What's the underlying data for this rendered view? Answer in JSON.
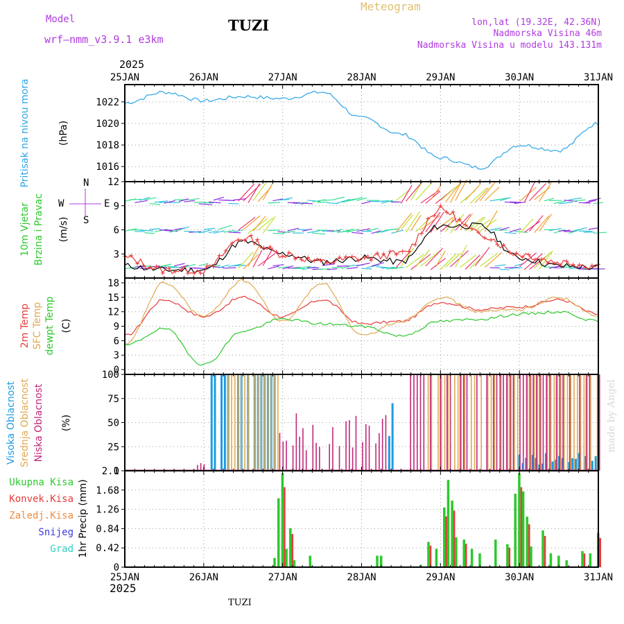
{
  "header": {
    "model_label": "Model",
    "model_name": "wrf–nmm_v3.9.1  e3km",
    "station": "TUZI",
    "title": "Meteogram",
    "coords": "lon,lat (19.32E, 42.36N)",
    "elevation": "Nadmorska Visina 46m",
    "model_elevation": "Nadmorska Visina u modelu 143.131m",
    "year_top": "2025",
    "year_bottom": "2025",
    "footer_station": "TUZI",
    "credit": "made by Angel"
  },
  "colors": {
    "pressure": "#2aa5e6",
    "temp2m": "#e83a3a",
    "sfc": "#e0a850",
    "dew": "#2dc82d",
    "wind_speed": "#000000",
    "gust": "#e83a3a",
    "high_cloud": "#1e9be0",
    "mid_cloud": "#e0a850",
    "low_cloud": "#c0267a",
    "precip_total": "#2dc82d",
    "precip_conv": "#e83a3a"
  },
  "chart_data": [
    {
      "type": "line",
      "panel": "pressure",
      "ylabel_left": "Pritisak na nivou mora",
      "ylabel_unit": "(hPa)",
      "ylim": [
        1014.6,
        1023.6
      ],
      "yticks": [
        "1016",
        "1018",
        "1020",
        "1022"
      ],
      "xlabels": [
        "25JAN",
        "26JAN",
        "27JAN",
        "28JAN",
        "29JAN",
        "30JAN",
        "31JAN"
      ],
      "x": [
        0,
        0.5,
        1,
        1.5,
        2,
        2.5,
        3,
        3.5,
        4,
        4.5,
        5,
        5.5,
        6
      ],
      "values": [
        1021.9,
        1022.9,
        1022.1,
        1022.5,
        1022.3,
        1022.9,
        1020.5,
        1019.0,
        1016.8,
        1015.9,
        1018.0,
        1017.5,
        1020.0
      ]
    },
    {
      "type": "line",
      "panel": "wind",
      "ylabel_left": [
        "10m Vjetar",
        "Brzina i Pravac"
      ],
      "ylabel_unit": "(m/s)",
      "ylim": [
        0,
        12
      ],
      "yticks": [
        "3",
        "6",
        "9",
        "12"
      ],
      "direction_legend": [
        "W",
        "E",
        "N",
        "S"
      ],
      "series": [
        {
          "name": "speed",
          "x": [
            0,
            0.5,
            1,
            1.5,
            2,
            2.5,
            3,
            3.5,
            4,
            4.5,
            5,
            5.5,
            6
          ],
          "values": [
            1.5,
            1.0,
            1.0,
            4.5,
            3.0,
            2.0,
            2.5,
            2.0,
            6.5,
            6.5,
            2.5,
            1.5,
            1.3
          ]
        },
        {
          "name": "gust",
          "x": [
            0,
            0.5,
            1,
            1.5,
            2,
            2.5,
            3,
            3.5,
            4,
            4.5,
            5,
            5.5,
            6
          ],
          "values": [
            2.5,
            1.0,
            1.0,
            5.0,
            3.0,
            2.0,
            2.5,
            3.0,
            8.5,
            5.5,
            3.0,
            2.0,
            1.5
          ]
        }
      ]
    },
    {
      "type": "line",
      "panel": "temperature",
      "ylabel_left": [
        "2m Temp",
        "SFC Temp",
        "dewpt Temp"
      ],
      "ylabel_unit": "(C)",
      "ylim": [
        -1,
        19
      ],
      "yticks": [
        "0",
        "3",
        "6",
        "9",
        "12",
        "15",
        "18"
      ],
      "series": [
        {
          "name": "2m Temp",
          "x": [
            0,
            0.5,
            1,
            1.5,
            2,
            2.5,
            3,
            3.5,
            4,
            4.5,
            5,
            5.5,
            6
          ],
          "values": [
            7,
            14.5,
            11,
            15,
            11,
            14.5,
            9.5,
            10,
            14,
            12.5,
            13,
            14.5,
            11.5
          ]
        },
        {
          "name": "SFC Temp",
          "x": [
            0,
            0.5,
            1,
            1.5,
            2,
            2.5,
            3,
            3.5,
            4,
            4.5,
            5,
            5.5,
            6
          ],
          "values": [
            5,
            18,
            11,
            18.5,
            10,
            18,
            7,
            10,
            15,
            12,
            12.5,
            15,
            11
          ]
        },
        {
          "name": "dewpt Temp",
          "x": [
            0,
            0.5,
            1,
            1.5,
            2,
            2.5,
            3,
            3.5,
            4,
            4.5,
            5,
            5.5,
            6
          ],
          "values": [
            5,
            8.5,
            1,
            8,
            10.5,
            9.5,
            9,
            7,
            10,
            10.5,
            11.5,
            12,
            10
          ]
        }
      ]
    },
    {
      "type": "bar",
      "panel": "clouds",
      "ylabel_left": [
        "Visoka Oblacnost",
        "Srednja Oblacnost",
        "Niska Oblacnost"
      ],
      "ylabel_unit": "(%)",
      "ylim": [
        0,
        100
      ],
      "yticks": [
        "0",
        "25",
        "50",
        "75",
        "100"
      ],
      "series": [
        {
          "name": "Visoka Oblacnost",
          "segments": [
            [
              1.1,
              1.9,
              100
            ],
            [
              3.35,
              3.4,
              75
            ],
            [
              5.0,
              6.0,
              20
            ]
          ]
        },
        {
          "name": "Srednja Oblacnost",
          "segments": [
            [
              1.3,
              1.95,
              100
            ],
            [
              3.75,
              6.0,
              100
            ]
          ]
        },
        {
          "name": "Niska Oblacnost",
          "segments": [
            [
              0.9,
              1.0,
              8
            ],
            [
              1.9,
              3.3,
              60
            ],
            [
              3.6,
              6.0,
              100
            ]
          ]
        }
      ]
    },
    {
      "type": "bar",
      "panel": "precip",
      "ylabel_left": [
        "Ukupna Kisa",
        "Konvek.Kisa",
        "Zaledj.Kisa",
        "Snijeg",
        "Grad"
      ],
      "ylabel_unit": "1hr Precip (mm)",
      "ylim": [
        0,
        2.1
      ],
      "yticks": [
        "0",
        "0.42",
        "0.84",
        "1.26",
        "1.68",
        "2.1"
      ],
      "x": [
        1.9,
        1.95,
        2.0,
        2.05,
        2.1,
        2.15,
        2.35,
        3.2,
        3.25,
        3.75,
        3.85,
        3.95,
        4.05,
        4.1,
        4.15,
        4.2,
        4.3,
        4.4,
        4.5,
        4.7,
        4.85,
        4.95,
        5.0,
        5.05,
        5.1,
        5.15,
        5.3,
        5.4,
        5.5,
        5.6,
        5.8,
        5.9,
        6.0
      ],
      "values": [
        0.2,
        1.5,
        2.05,
        0.4,
        0.85,
        0.15,
        0.25,
        0.25,
        0.25,
        0.05,
        0.55,
        0.4,
        1.3,
        1.9,
        1.45,
        0.65,
        0.6,
        0.4,
        0.3,
        0.6,
        0.5,
        1.6,
        2.05,
        1.65,
        1.1,
        0.45,
        0.8,
        0.3,
        0.25,
        0.15,
        0.35,
        0.3,
        0.75
      ]
    }
  ]
}
